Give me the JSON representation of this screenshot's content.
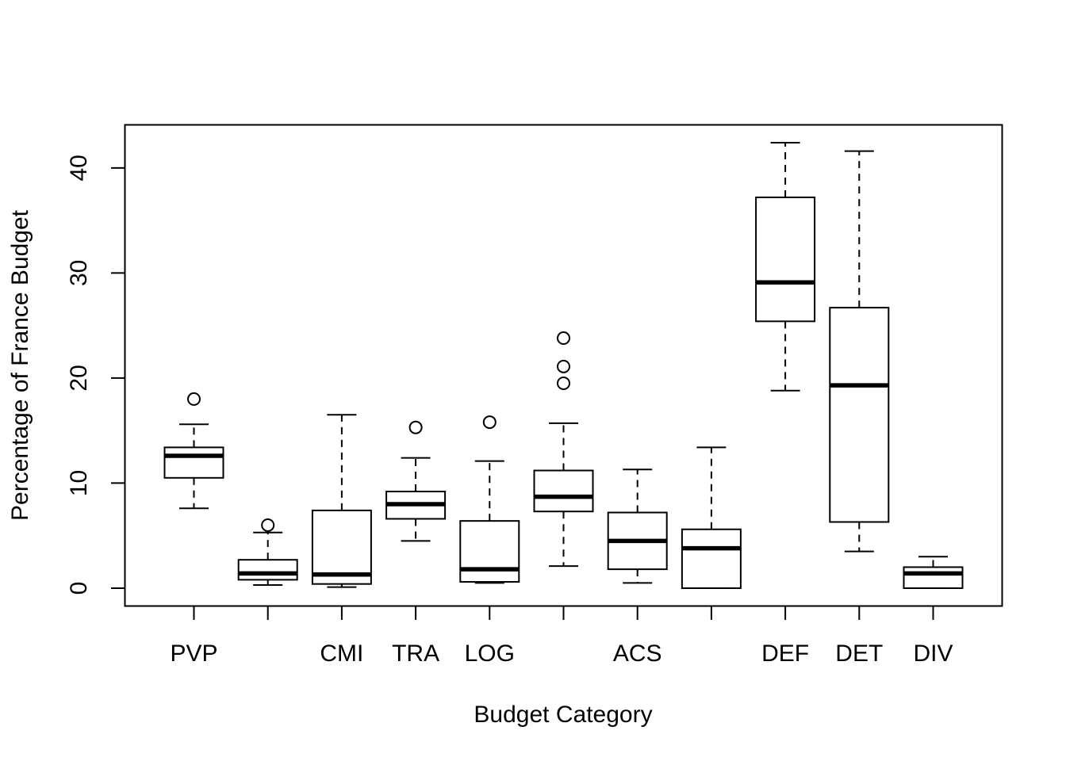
{
  "chart_data": {
    "type": "boxplot",
    "title": "",
    "xlabel": "Budget Category",
    "ylabel": "Percentage of France Budget",
    "ylim": [
      -1.7,
      44.1
    ],
    "yticks": [
      0,
      10,
      20,
      30,
      40
    ],
    "grid": false,
    "legend": "none",
    "categories": [
      "PVP",
      "",
      "CMI",
      "TRA",
      "LOG",
      "",
      "ACS",
      "",
      "DEF",
      "DET",
      "DIV"
    ],
    "boxes": [
      {
        "category": "PVP",
        "whisker_low": 7.6,
        "q1": 10.5,
        "median": 12.6,
        "q3": 13.4,
        "whisker_high": 15.6,
        "outliers": [
          18.0
        ]
      },
      {
        "category": "",
        "whisker_low": 0.3,
        "q1": 0.8,
        "median": 1.4,
        "q3": 2.7,
        "whisker_high": 5.3,
        "outliers": [
          6.0
        ]
      },
      {
        "category": "CMI",
        "whisker_low": 0.1,
        "q1": 0.4,
        "median": 1.3,
        "q3": 7.4,
        "whisker_high": 16.5,
        "outliers": []
      },
      {
        "category": "TRA",
        "whisker_low": 4.5,
        "q1": 6.6,
        "median": 8.0,
        "q3": 9.2,
        "whisker_high": 12.4,
        "outliers": [
          15.3
        ]
      },
      {
        "category": "LOG",
        "whisker_low": 0.5,
        "q1": 0.6,
        "median": 1.8,
        "q3": 6.4,
        "whisker_high": 12.1,
        "outliers": [
          15.8
        ]
      },
      {
        "category": "",
        "whisker_low": 2.1,
        "q1": 7.3,
        "median": 8.7,
        "q3": 11.2,
        "whisker_high": 15.7,
        "outliers": [
          19.5,
          21.1,
          23.8
        ]
      },
      {
        "category": "ACS",
        "whisker_low": 0.5,
        "q1": 1.8,
        "median": 4.5,
        "q3": 7.2,
        "whisker_high": 11.3,
        "outliers": []
      },
      {
        "category": "",
        "whisker_low": 0.0,
        "q1": 0.0,
        "median": 3.8,
        "q3": 5.6,
        "whisker_high": 13.4,
        "outliers": []
      },
      {
        "category": "DEF",
        "whisker_low": 18.8,
        "q1": 25.4,
        "median": 29.1,
        "q3": 37.2,
        "whisker_high": 42.4,
        "outliers": []
      },
      {
        "category": "DET",
        "whisker_low": 3.5,
        "q1": 6.3,
        "median": 19.3,
        "q3": 26.7,
        "whisker_high": 41.6,
        "outliers": []
      },
      {
        "category": "DIV",
        "whisker_low": 0.0,
        "q1": 0.0,
        "median": 1.4,
        "q3": 2.0,
        "whisker_high": 3.0,
        "outliers": []
      }
    ],
    "colors": {
      "stroke": "#000000",
      "fill": "#ffffff"
    }
  }
}
